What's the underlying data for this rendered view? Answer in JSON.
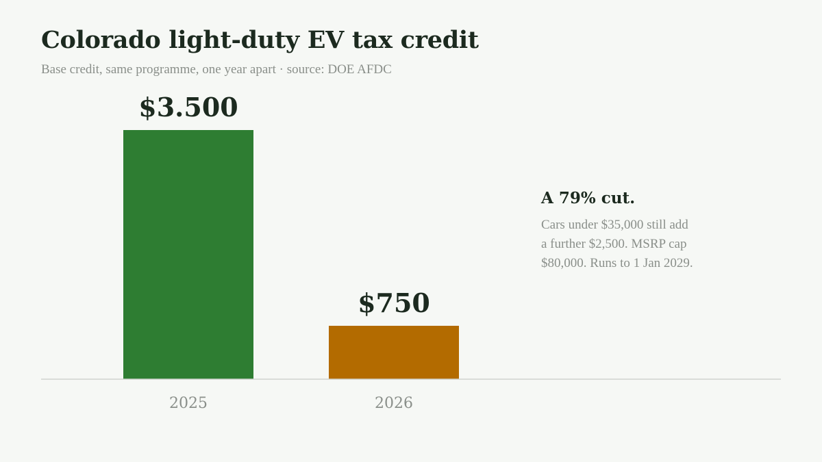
{
  "chart_data": {
    "type": "bar",
    "title": "Colorado light-duty EV tax credit",
    "subtitle": "Base credit, same programme, one year apart  ·  source: DOE AFDC",
    "categories": [
      "2025",
      "2026"
    ],
    "values": [
      3500,
      750
    ],
    "data_labels": [
      "$3.500",
      "$750"
    ],
    "colors": [
      "#2e7d32",
      "#b36b00"
    ],
    "xlabel": "",
    "ylabel": "",
    "ylim": [
      0,
      4000
    ],
    "grid": false,
    "legend": "none"
  },
  "annotation": {
    "headline": "A 79% cut.",
    "lines": [
      "Cars under $35,000 still add",
      "a further $2,500. MSRP cap",
      "$80,000. Runs to 1 Jan 2029."
    ]
  },
  "colors": {
    "background": "#f6f8f5",
    "text_dark": "#1c2a1f",
    "text_muted": "#8a8f8a",
    "baseline": "#cfd3cf"
  }
}
